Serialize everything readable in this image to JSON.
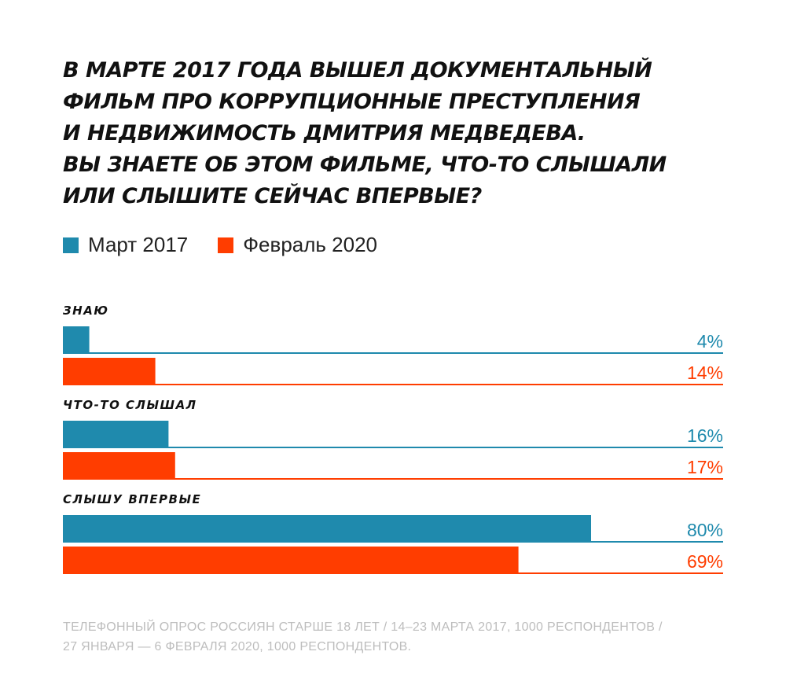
{
  "title_lines": [
    "В марте 2017 года вышел документальный",
    "фильм про коррупционные преступления",
    "и недвижимость Дмитрия Медведева.",
    "Вы знаете об этом фильме, что-то слышали",
    "или слышите сейчас впервые?"
  ],
  "colors": {
    "series_2017": "#1f8aad",
    "series_2020": "#ff3d00"
  },
  "footnote_lines": [
    "Телефонный опрос россиян старше 18 лет / 14–23 марта 2017, 1000 респондентов /",
    "27 января — 6 февраля 2020, 1000 респондентов."
  ],
  "chart_data": {
    "type": "bar",
    "orientation": "horizontal",
    "title": "В марте 2017 года вышел документальный фильм про коррупционные преступления и недвижимость Дмитрия Медведева. Вы знаете об этом фильме, что-то слышали или слышите сейчас впервые?",
    "categories": [
      "Знаю",
      "Что-то слышал",
      "Слышу впервые"
    ],
    "series": [
      {
        "name": "Март 2017",
        "color": "#1f8aad",
        "values": [
          4,
          16,
          80
        ],
        "labels": [
          "4%",
          "16%",
          "80%"
        ]
      },
      {
        "name": "Февраль 2020",
        "color": "#ff3d00",
        "values": [
          14,
          17,
          69
        ],
        "labels": [
          "14%",
          "17%",
          "69%"
        ]
      }
    ],
    "xlim": [
      0,
      100
    ],
    "unit": "%",
    "legend": "top-left",
    "grid": false
  }
}
